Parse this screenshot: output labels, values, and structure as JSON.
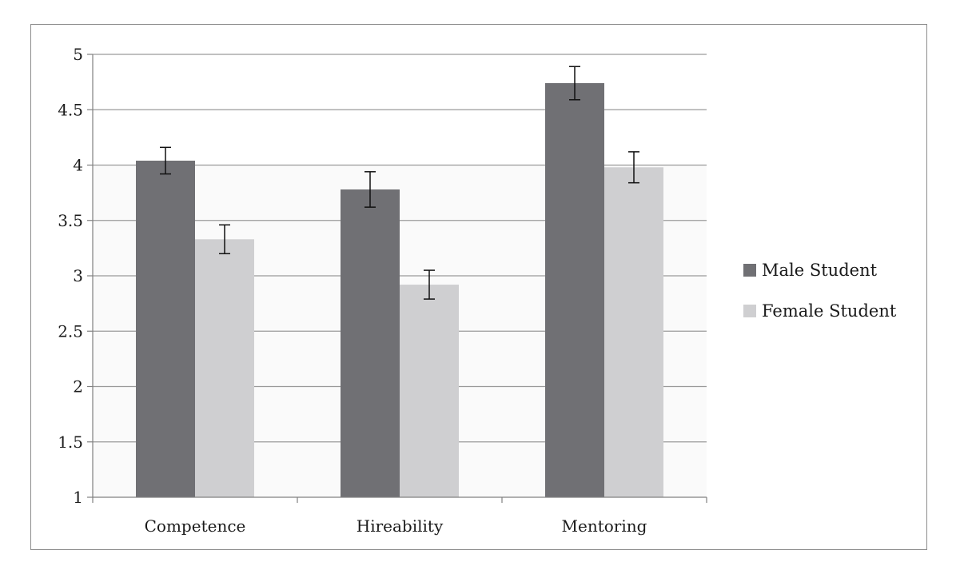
{
  "chart_data": {
    "type": "bar",
    "categories": [
      "Competence",
      "Hireability",
      "Mentoring"
    ],
    "series": [
      {
        "name": "Male Student",
        "values": [
          4.04,
          3.78,
          4.74
        ],
        "error": [
          0.12,
          0.16,
          0.15
        ],
        "color": "#707074"
      },
      {
        "name": "Female Student",
        "values": [
          3.33,
          2.92,
          3.98
        ],
        "error": [
          0.13,
          0.13,
          0.14
        ],
        "color": "#cfcfd1"
      }
    ],
    "ylim": [
      1,
      5
    ],
    "yticks": [
      "1",
      "1.5",
      "2",
      "2.5",
      "3",
      "3.5",
      "4",
      "4.5",
      "5"
    ],
    "grid": true,
    "legend_position": "right",
    "title": "",
    "xlabel": "",
    "ylabel": ""
  }
}
